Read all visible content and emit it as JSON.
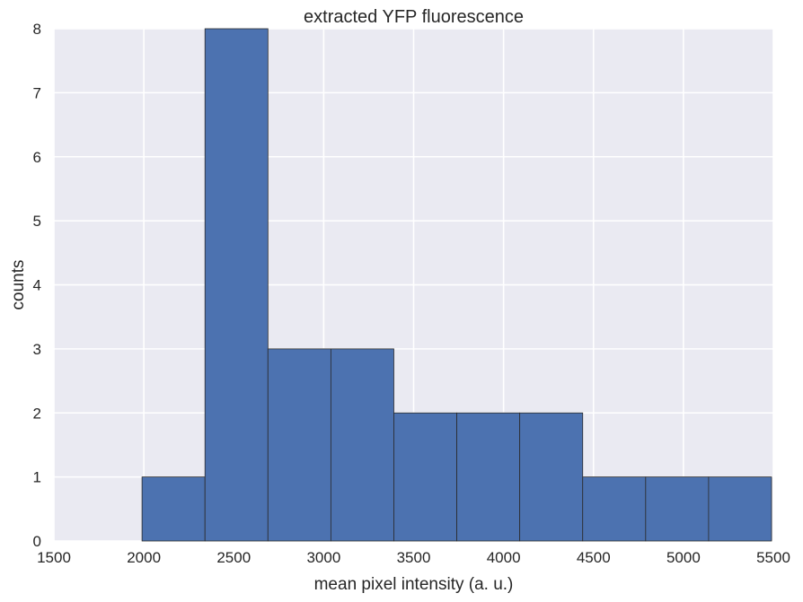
{
  "chart_data": {
    "type": "bar",
    "title": "extracted YFP fluorescence",
    "xlabel": "mean pixel intensity (a. u.)",
    "ylabel": "counts",
    "xlim": [
      1500,
      5500
    ],
    "ylim": [
      0,
      8
    ],
    "x_ticks": [
      "1500",
      "2000",
      "2500",
      "3000",
      "3500",
      "4000",
      "4500",
      "5000",
      "5500"
    ],
    "y_ticks": [
      "0",
      "1",
      "2",
      "3",
      "4",
      "5",
      "6",
      "7",
      "8"
    ],
    "bins": [
      {
        "start": 1990,
        "end": 2340,
        "count": 1
      },
      {
        "start": 2340,
        "end": 2690,
        "count": 8
      },
      {
        "start": 2690,
        "end": 3040,
        "count": 3
      },
      {
        "start": 3040,
        "end": 3390,
        "count": 3
      },
      {
        "start": 3390,
        "end": 3740,
        "count": 2
      },
      {
        "start": 3740,
        "end": 4090,
        "count": 2
      },
      {
        "start": 4090,
        "end": 4440,
        "count": 2
      },
      {
        "start": 4440,
        "end": 4790,
        "count": 1
      },
      {
        "start": 4790,
        "end": 5140,
        "count": 1
      },
      {
        "start": 5140,
        "end": 5490,
        "count": 1
      }
    ],
    "grid": true,
    "colors": {
      "background": "#EAEAF2",
      "gridline": "#FFFFFF",
      "bar": "#4C72B0",
      "bar_edge": "#2B2B2B",
      "text": "#262626"
    }
  }
}
